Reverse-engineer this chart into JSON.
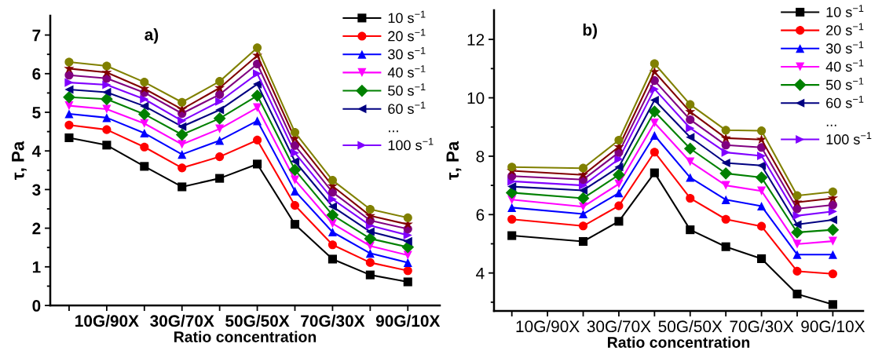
{
  "chart_data": [
    {
      "type": "line",
      "title": "a)",
      "xlabel": "Ratio concentration",
      "ylabel": "τ, Pa",
      "categories": [
        null,
        "10G/90X",
        null,
        "30G/70X",
        null,
        "50G/50X",
        null,
        "70G/30X",
        null,
        "90G/10X"
      ],
      "ylim": [
        0,
        7.5
      ],
      "yticks": [
        0,
        {
          "value": 0.5,
          "label": null
        },
        1,
        {
          "value": 1.5,
          "label": null
        },
        2,
        {
          "value": 2.5,
          "label": null
        },
        3,
        {
          "value": 3.5,
          "label": null
        },
        4,
        {
          "value": 4.5,
          "label": null
        },
        5,
        {
          "value": 5.5,
          "label": null
        },
        6,
        {
          "value": 6.5,
          "label": null
        },
        7
      ],
      "grid": false,
      "legend": "top right",
      "annotations": [
        "..."
      ],
      "series": [
        {
          "name": "10 s$^{−1}$",
          "color": "#000000",
          "marker": "square",
          "values": [
            4.34,
            4.15,
            3.6,
            3.07,
            3.29,
            3.66,
            2.1,
            1.2,
            0.79,
            0.61
          ]
        },
        {
          "name": "20 s$^{−1}$",
          "color": "#ff0000",
          "marker": "circle",
          "values": [
            4.67,
            4.55,
            4.1,
            3.56,
            3.85,
            4.28,
            2.59,
            1.57,
            1.11,
            0.9
          ]
        },
        {
          "name": "30 s$^{−1}$",
          "color": "#0000ff",
          "marker": "triangle",
          "values": [
            4.96,
            4.86,
            4.46,
            3.91,
            4.27,
            4.78,
            2.96,
            1.9,
            1.35,
            1.11
          ]
        },
        {
          "name": "40 s$^{−1}$",
          "color": "#ff00ff",
          "marker": "triangle_down",
          "values": [
            5.17,
            5.08,
            4.71,
            4.17,
            4.57,
            5.12,
            3.25,
            2.12,
            1.54,
            1.3
          ]
        },
        {
          "name": "50 s$^{−1}$",
          "color": "#008000",
          "marker": "diamond",
          "values": [
            5.39,
            5.34,
            4.95,
            4.42,
            4.84,
            5.43,
            3.51,
            2.34,
            1.73,
            1.51
          ]
        },
        {
          "name": "60 s$^{−1}$",
          "color": "#000080",
          "marker": "triangle_left",
          "values": [
            5.59,
            5.52,
            5.16,
            4.63,
            5.06,
            5.73,
            3.73,
            2.56,
            1.91,
            1.66
          ]
        },
        {
          "name": "100 s$^{−1}$",
          "color": "#8000ff",
          "marker": "triangle_right",
          "values": [
            5.77,
            5.71,
            5.34,
            4.78,
            5.28,
            6.0,
            3.95,
            2.75,
            2.07,
            1.82
          ]
        },
        {
          "color": "#800080",
          "marker": "circle",
          "values": [
            5.96,
            5.88,
            5.51,
            4.97,
            5.46,
            6.25,
            4.14,
            2.93,
            2.2,
            1.98
          ]
        },
        {
          "color": "#800000",
          "marker": "star",
          "values": [
            6.13,
            6.03,
            5.61,
            5.08,
            5.63,
            6.47,
            4.32,
            3.09,
            2.32,
            2.1
          ]
        },
        {
          "color": "#808000",
          "marker": "circle",
          "values": [
            6.3,
            6.2,
            5.78,
            5.26,
            5.8,
            6.67,
            4.48,
            3.24,
            2.49,
            2.27
          ]
        }
      ]
    },
    {
      "type": "line",
      "title": "b)",
      "xlabel": "Ratio concentration",
      "ylabel": "τ, Pa",
      "categories": [
        null,
        "10G/90X",
        null,
        "30G/70X",
        null,
        "50G/50X",
        null,
        "70G/30X",
        null,
        "90G/10X"
      ],
      "ylim": [
        2.7,
        13
      ],
      "yticks": [
        {
          "value": 3,
          "label": null
        },
        4,
        {
          "value": 5,
          "label": null
        },
        6,
        {
          "value": 7,
          "label": null
        },
        8,
        {
          "value": 9,
          "label": null
        },
        10,
        {
          "value": 11,
          "label": null
        },
        12
      ],
      "grid": false,
      "legend": "top right",
      "annotations": [
        "..."
      ],
      "series": [
        {
          "name": "10 s$^{−1}$",
          "color": "#000000",
          "marker": "square",
          "values": [
            5.28,
            null,
            5.08,
            5.77,
            7.43,
            5.48,
            4.9,
            4.49,
            3.28,
            2.92
          ]
        },
        {
          "name": "20 s$^{−1}$",
          "color": "#ff0000",
          "marker": "circle",
          "values": [
            5.84,
            null,
            5.61,
            6.3,
            8.14,
            6.56,
            5.84,
            5.6,
            4.06,
            3.97
          ]
        },
        {
          "name": "30 s$^{−1}$",
          "color": "#0000ff",
          "marker": "triangle",
          "values": [
            6.24,
            null,
            6.02,
            6.74,
            8.71,
            7.27,
            6.51,
            6.29,
            4.63,
            4.63
          ]
        },
        {
          "name": "40 s$^{−1}$",
          "color": "#ff00ff",
          "marker": "triangle_down",
          "values": [
            6.51,
            null,
            6.27,
            7.05,
            9.14,
            7.81,
            7.0,
            6.81,
            4.99,
            5.09
          ]
        },
        {
          "name": "50 s$^{−1}$",
          "color": "#008000",
          "marker": "diamond",
          "values": [
            6.75,
            null,
            6.56,
            7.36,
            9.53,
            8.26,
            7.41,
            7.27,
            5.39,
            5.48
          ]
        },
        {
          "name": "60 s$^{−1}$",
          "color": "#000080",
          "marker": "triangle_left",
          "values": [
            6.96,
            null,
            6.83,
            7.63,
            9.92,
            8.65,
            7.77,
            7.68,
            5.66,
            5.82
          ]
        },
        {
          "name": "100 s$^{−1}$",
          "color": "#8000ff",
          "marker": "triangle_right",
          "values": [
            7.14,
            null,
            7.0,
            7.9,
            10.3,
            8.96,
            8.13,
            8.01,
            5.96,
            6.11
          ]
        },
        {
          "color": "#800080",
          "marker": "circle",
          "values": [
            7.32,
            null,
            7.2,
            8.13,
            10.59,
            9.25,
            8.38,
            8.3,
            6.2,
            6.33
          ]
        },
        {
          "color": "#800000",
          "marker": "star",
          "values": [
            7.5,
            null,
            7.36,
            8.32,
            10.89,
            9.52,
            8.62,
            8.57,
            6.42,
            6.56
          ]
        },
        {
          "color": "#808000",
          "marker": "circle",
          "values": [
            7.63,
            null,
            7.59,
            8.55,
            11.17,
            9.77,
            8.89,
            8.87,
            6.65,
            6.78
          ]
        }
      ]
    }
  ]
}
